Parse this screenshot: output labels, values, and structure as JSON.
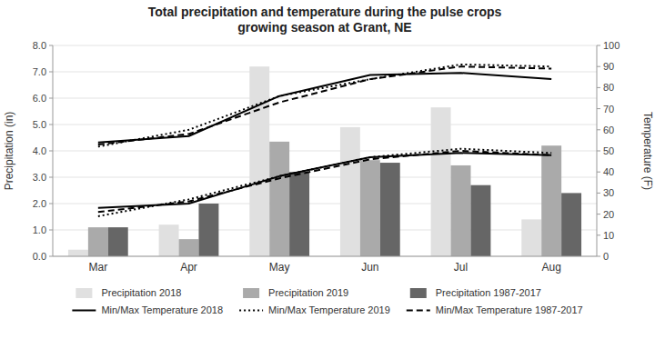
{
  "chart_data": {
    "type": "bar",
    "title": "Total precipitation and temperature during the pulse crops\ngrowing season at Grant, NE",
    "categories": [
      "Mar",
      "Apr",
      "May",
      "Jun",
      "Jul",
      "Aug"
    ],
    "ylabel": "Precipitation (in)",
    "y2label": "Temperature (F)",
    "ylim": [
      0,
      8.0
    ],
    "yticks": [
      {
        "value": 0.0,
        "label": "0.0"
      },
      {
        "value": 1.0,
        "label": "1.0"
      },
      {
        "value": 2.0,
        "label": "2.0"
      },
      {
        "value": 3.0,
        "label": "3.0"
      },
      {
        "value": 4.0,
        "label": "4.0"
      },
      {
        "value": 5.0,
        "label": "5.0"
      },
      {
        "value": 6.0,
        "label": "6.0"
      },
      {
        "value": 7.0,
        "label": "7.0"
      },
      {
        "value": 8.0,
        "label": "8.0"
      }
    ],
    "y2lim": [
      0,
      100
    ],
    "y2ticks": [
      0,
      10,
      20,
      30,
      40,
      50,
      60,
      70,
      80,
      90,
      100
    ],
    "grid": true,
    "legend": "bottom",
    "series": [
      {
        "name": "Precipitation 2018",
        "type": "bar",
        "color": "#e0e0e0",
        "values": [
          0.25,
          1.2,
          7.2,
          4.9,
          5.65,
          1.4
        ]
      },
      {
        "name": "Precipitation 2019",
        "type": "bar",
        "color": "#aaaaaa",
        "values": [
          1.1,
          0.65,
          4.35,
          3.65,
          3.45,
          4.2
        ]
      },
      {
        "name": "Precipitation 1987-2017",
        "type": "bar",
        "color": "#666666",
        "values": [
          1.1,
          2.0,
          3.2,
          3.55,
          2.7,
          2.4
        ]
      },
      {
        "name": "Min/Max Temperature 2018",
        "type": "line",
        "axis": "y2",
        "line_style": "solid",
        "color": "#000000",
        "values": [
          54,
          57,
          76,
          86,
          87,
          84
        ]
      },
      {
        "name": "Min/Max Temperature 2018",
        "type": "line",
        "axis": "y2",
        "line_style": "solid",
        "color": "#000000",
        "values": [
          23,
          25,
          38,
          47,
          49,
          48
        ]
      },
      {
        "name": "Min/Max Temperature 2019",
        "type": "line",
        "axis": "y2",
        "line_style": "dotted",
        "color": "#000000",
        "values": [
          52,
          60,
          76,
          84,
          91,
          90
        ]
      },
      {
        "name": "Min/Max Temperature 2019",
        "type": "line",
        "axis": "y2",
        "line_style": "dotted",
        "color": "#000000",
        "values": [
          19,
          27,
          38,
          47,
          51,
          49
        ]
      },
      {
        "name": "Min/Max Temperature 1987-2017",
        "type": "line",
        "axis": "y2",
        "line_style": "dashed",
        "color": "#000000",
        "values": [
          53,
          58,
          73,
          84,
          90,
          89
        ]
      },
      {
        "name": "Min/Max Temperature 1987-2017",
        "type": "line",
        "axis": "y2",
        "line_style": "dashed",
        "color": "#000000",
        "values": [
          21,
          26,
          37,
          46,
          50,
          48
        ]
      }
    ]
  }
}
